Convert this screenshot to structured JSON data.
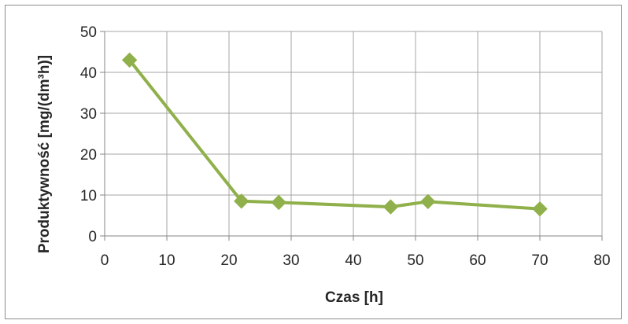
{
  "chart_data": {
    "type": "line",
    "title": "",
    "xlabel": "Czas [h]",
    "ylabel": "Produktywność [mg/(dm³h)]",
    "xlim": [
      0,
      80
    ],
    "ylim": [
      0,
      50
    ],
    "x_ticks": [
      "0",
      "10",
      "20",
      "30",
      "40",
      "50",
      "60",
      "70",
      "80"
    ],
    "y_ticks": [
      "0",
      "10",
      "20",
      "30",
      "40",
      "50"
    ],
    "grid": true,
    "marker": "diamond",
    "colors": {
      "series": "#8fb04a",
      "grid": "#a6a6a6",
      "axis": "#868686"
    },
    "series": [
      {
        "x": [
          4,
          22,
          28,
          46,
          52,
          70
        ],
        "y": [
          43,
          8.5,
          8.2,
          7.1,
          8.4,
          6.6
        ]
      }
    ]
  }
}
